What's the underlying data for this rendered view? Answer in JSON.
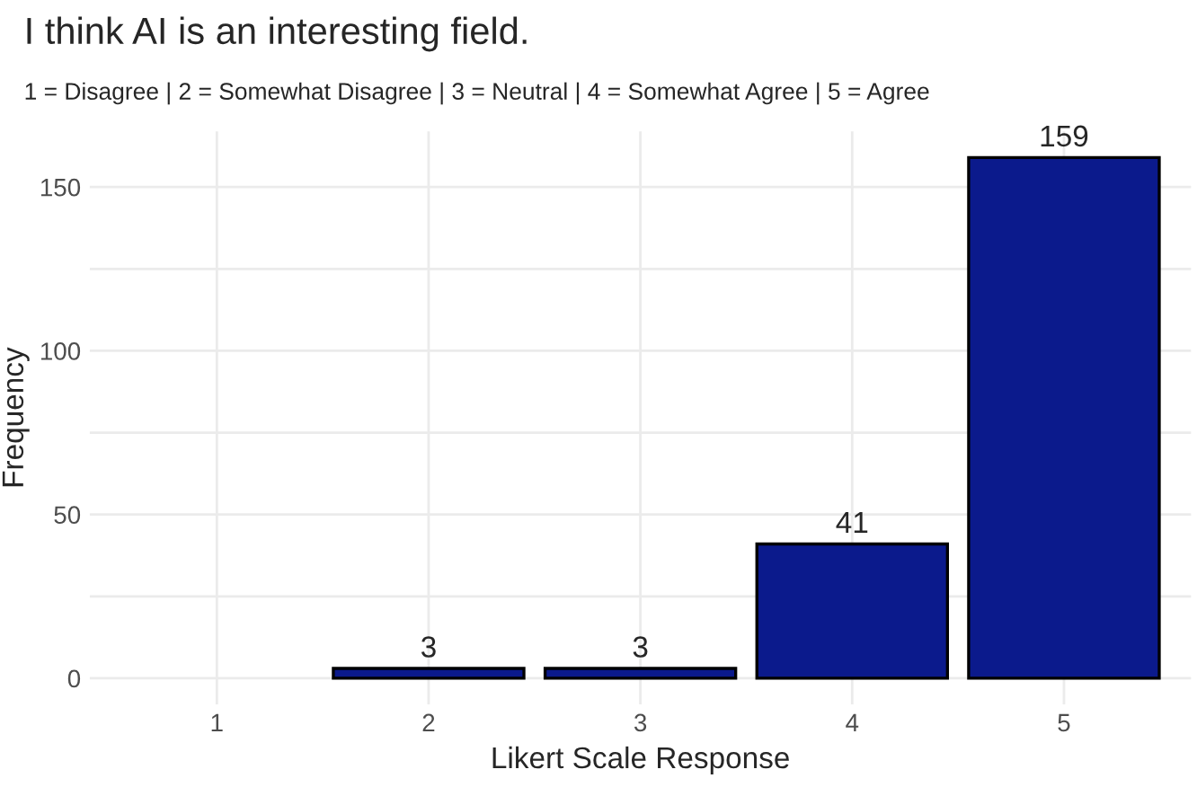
{
  "chart_data": {
    "type": "bar",
    "title": "I think AI is an interesting field.",
    "subtitle": "1 = Disagree | 2 = Somewhat Disagree | 3 = Neutral | 4 = Somewhat Agree | 5 = Agree",
    "xlabel": "Likert Scale Response",
    "ylabel": "Frequency",
    "categories": [
      "1",
      "2",
      "3",
      "4",
      "5"
    ],
    "values": [
      0,
      3,
      3,
      41,
      159
    ],
    "value_labels": [
      null,
      "3",
      "3",
      "41",
      "159"
    ],
    "color": "#0b1a8c",
    "ylim": [
      -8,
      167
    ],
    "yticks": [
      0,
      {
        "value": 25,
        "label": null
      },
      50,
      {
        "value": 75,
        "label": null
      },
      100,
      {
        "value": 125,
        "label": null
      },
      150
    ],
    "grid": true
  }
}
